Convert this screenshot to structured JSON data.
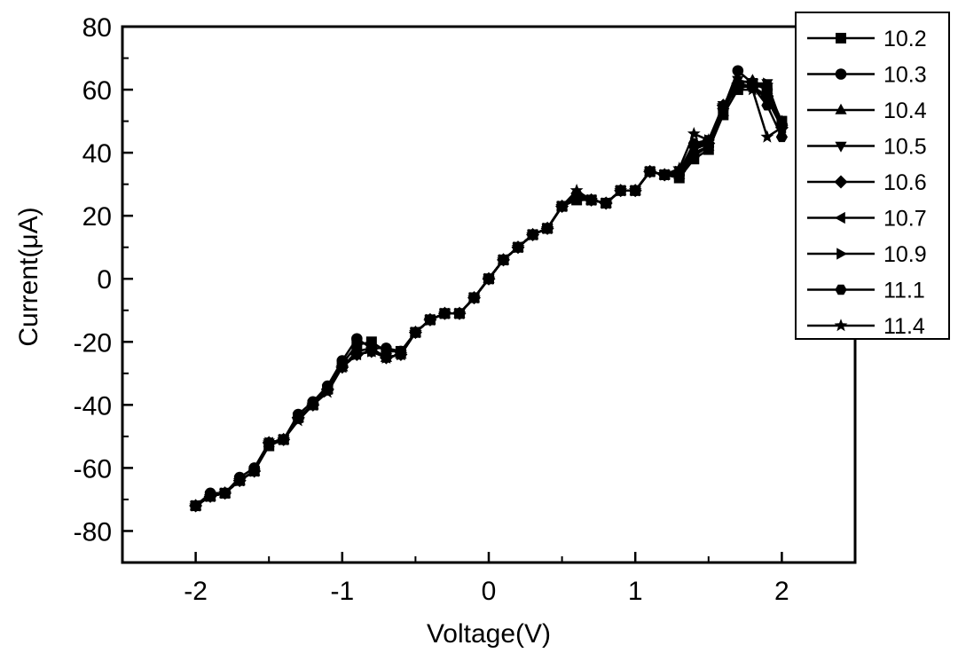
{
  "chart_data": {
    "type": "line",
    "title": "",
    "xlabel": "Voltage(V)",
    "ylabel": "Current(μA)",
    "xlim": [
      -2.5,
      2.5
    ],
    "ylim": [
      -90,
      80
    ],
    "xticks": [
      -2,
      -1,
      0,
      1,
      2
    ],
    "yticks": [
      80,
      60,
      40,
      20,
      0,
      -20,
      -40,
      -60,
      -80
    ],
    "xtick_labels": [
      "-2",
      "-1",
      "0",
      "1",
      "2"
    ],
    "ytick_labels": [
      "80",
      "60",
      "40",
      "20",
      "0",
      "-20",
      "-40",
      "-60",
      "-80"
    ],
    "grid": false,
    "legend_position": "top-right",
    "colors": {
      "series": "#000000",
      "background": "#ffffff"
    },
    "x": [
      -2.0,
      -1.9,
      -1.8,
      -1.7,
      -1.6,
      -1.5,
      -1.4,
      -1.3,
      -1.2,
      -1.1,
      -1.0,
      -0.9,
      -0.8,
      -0.7,
      -0.6,
      -0.5,
      -0.4,
      -0.3,
      -0.2,
      -0.1,
      0.0,
      0.1,
      0.2,
      0.3,
      0.4,
      0.5,
      0.6,
      0.7,
      0.8,
      0.9,
      1.0,
      1.1,
      1.2,
      1.3,
      1.4,
      1.5,
      1.6,
      1.7,
      1.8,
      1.9,
      2.0
    ],
    "series": [
      {
        "name": "10.2",
        "marker": "square",
        "values": [
          -72,
          -69,
          -68,
          -64,
          -61,
          -53,
          -51,
          -44,
          -40,
          -35,
          -27,
          -21,
          -20,
          -23,
          -23,
          -17,
          -13,
          -11,
          -11,
          -6,
          0,
          6,
          10,
          14,
          16,
          23,
          25,
          25,
          24,
          28,
          28,
          34,
          33,
          32,
          38,
          41,
          52,
          60,
          62,
          60,
          50
        ]
      },
      {
        "name": "10.3",
        "marker": "circle",
        "values": [
          -72,
          -68,
          -68,
          -63,
          -60,
          -52,
          -51,
          -43,
          -39,
          -34,
          -26,
          -19,
          -22,
          -22,
          -23,
          -17,
          -13,
          -11,
          -11,
          -6,
          0,
          6,
          10,
          14,
          16,
          23,
          26,
          25,
          24,
          28,
          28,
          34,
          33,
          33,
          39,
          42,
          54,
          66,
          62,
          60,
          49
        ]
      },
      {
        "name": "10.4",
        "marker": "triangle-up",
        "values": [
          -72,
          -69,
          -68,
          -64,
          -61,
          -52,
          -51,
          -44,
          -40,
          -35,
          -28,
          -23,
          -22,
          -25,
          -24,
          -17,
          -13,
          -11,
          -11,
          -6,
          0,
          6,
          10,
          14,
          16,
          23,
          26,
          25,
          24,
          28,
          28,
          34,
          33,
          33,
          40,
          42,
          53,
          62,
          63,
          60,
          50
        ]
      },
      {
        "name": "10.5",
        "marker": "triangle-down",
        "values": [
          -72,
          -69,
          -68,
          -64,
          -61,
          -52,
          -51,
          -44,
          -40,
          -35,
          -28,
          -24,
          -23,
          -25,
          -24,
          -17,
          -13,
          -11,
          -11,
          -6,
          0,
          6,
          10,
          14,
          16,
          23,
          26,
          25,
          24,
          28,
          28,
          34,
          33,
          34,
          41,
          43,
          55,
          63,
          62,
          62,
          48
        ]
      },
      {
        "name": "10.6",
        "marker": "diamond",
        "values": [
          -72,
          -69,
          -68,
          -64,
          -61,
          -52,
          -51,
          -44,
          -40,
          -35,
          -28,
          -24,
          -23,
          -25,
          -24,
          -17,
          -13,
          -11,
          -11,
          -6,
          0,
          6,
          10,
          14,
          16,
          23,
          26,
          25,
          24,
          28,
          28,
          34,
          33,
          34,
          42,
          43,
          55,
          62,
          61,
          58,
          48
        ]
      },
      {
        "name": "10.7",
        "marker": "triangle-left",
        "values": [
          -72,
          -69,
          -68,
          -64,
          -61,
          -52,
          -51,
          -44,
          -40,
          -35,
          -28,
          -24,
          -23,
          -25,
          -24,
          -17,
          -13,
          -11,
          -11,
          -6,
          0,
          6,
          10,
          14,
          16,
          23,
          26,
          25,
          24,
          28,
          28,
          34,
          33,
          34,
          42,
          44,
          54,
          61,
          61,
          57,
          48
        ]
      },
      {
        "name": "10.9",
        "marker": "triangle-right",
        "values": [
          -72,
          -69,
          -68,
          -64,
          -61,
          -52,
          -51,
          -44,
          -40,
          -35,
          -28,
          -24,
          -23,
          -25,
          -24,
          -17,
          -13,
          -11,
          -11,
          -6,
          0,
          6,
          10,
          14,
          16,
          23,
          26,
          25,
          24,
          28,
          28,
          34,
          33,
          34,
          42,
          44,
          54,
          61,
          61,
          62,
          49
        ]
      },
      {
        "name": "11.1",
        "marker": "hexagon",
        "values": [
          -72,
          -69,
          -68,
          -64,
          -61,
          -52,
          -51,
          -44,
          -40,
          -35,
          -28,
          -24,
          -23,
          -25,
          -24,
          -17,
          -13,
          -11,
          -11,
          -6,
          0,
          6,
          10,
          14,
          16,
          23,
          27,
          25,
          24,
          28,
          28,
          34,
          33,
          34,
          43,
          44,
          54,
          61,
          61,
          55,
          45
        ]
      },
      {
        "name": "11.4",
        "marker": "star",
        "values": [
          -72,
          -69,
          -68,
          -64,
          -61,
          -52,
          -51,
          -45,
          -40,
          -36,
          -28,
          -24,
          -23,
          -25,
          -24,
          -17,
          -13,
          -11,
          -11,
          -6,
          0,
          6,
          10,
          14,
          16,
          23,
          28,
          25,
          24,
          28,
          28,
          34,
          33,
          35,
          46,
          44,
          55,
          60,
          60,
          45,
          48
        ]
      }
    ]
  }
}
